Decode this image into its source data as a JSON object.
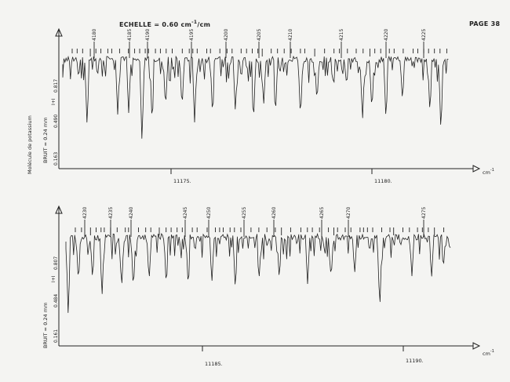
{
  "header": {
    "scale_prefix": "ECHELLE = 0.60 cm",
    "scale_exp": "-1",
    "scale_suffix": "/cm",
    "page": "PAGE 38"
  },
  "side_text": "Molécule de potassium",
  "colors": {
    "ink": "#222222",
    "paper": "#f4f4f2"
  },
  "chart_data": [
    {
      "type": "line",
      "noise_label": "BRUIT = 0.24 mm",
      "y_marker": "I+I",
      "y_ticks": [
        "0.817",
        "0.490",
        "0.163"
      ],
      "x_unit": "cm",
      "x_unit_exp": "-1",
      "x_ticks": [
        "11175.",
        "11180."
      ],
      "line_labels": [
        "4180",
        "4185",
        "4190",
        "4195",
        "4200",
        "4205",
        "4210",
        "4215",
        "4220",
        "4225"
      ],
      "grid": false
    },
    {
      "type": "line",
      "noise_label": "BRUIT = 0.24 mm",
      "y_marker": "I+I",
      "y_ticks": [
        "0.807",
        "0.484",
        "0.161"
      ],
      "x_unit": "cm",
      "x_unit_exp": "-1",
      "x_ticks": [
        "11185.",
        "11190."
      ],
      "line_labels": [
        "4230",
        "4235",
        "4240",
        "4245",
        "4250",
        "4255",
        "4260",
        "4265",
        "4270",
        "4275"
      ],
      "grid": false
    }
  ]
}
